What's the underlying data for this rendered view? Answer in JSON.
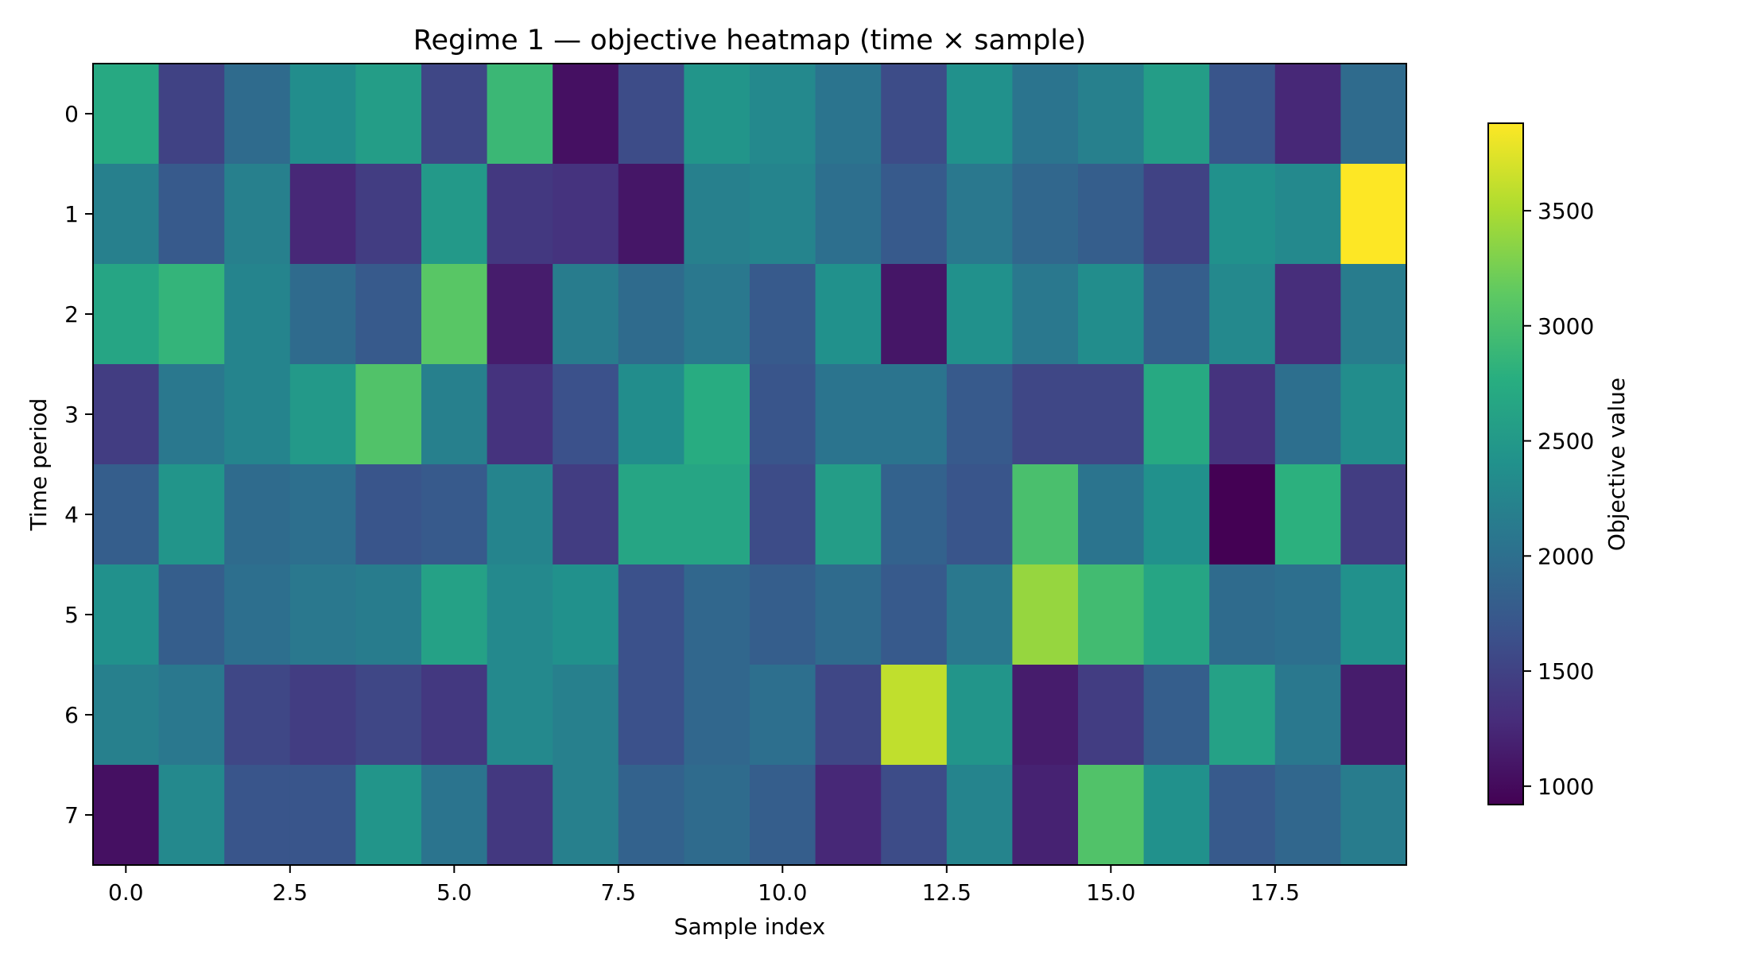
{
  "chart_data": {
    "type": "heatmap",
    "title": "Regime 1 — objective heatmap (time × sample)",
    "xlabel": "Sample index",
    "ylabel": "Time period",
    "colorbar_label": "Objective value",
    "colormap": "viridis",
    "vmin": 920,
    "vmax": 3880,
    "x_tick_values": [
      0,
      2.5,
      5,
      7.5,
      10,
      12.5,
      15,
      17.5
    ],
    "x_tick_labels": [
      "0.0",
      "2.5",
      "5.0",
      "7.5",
      "10.0",
      "12.5",
      "15.0",
      "17.5"
    ],
    "y_tick_labels": [
      "0",
      "1",
      "2",
      "3",
      "4",
      "5",
      "6",
      "7"
    ],
    "colorbar_ticks": [
      1000,
      1500,
      2000,
      2500,
      3000,
      3500
    ],
    "colorbar_tick_labels": [
      "1000",
      "1500",
      "2000",
      "2500",
      "3000",
      "3500"
    ],
    "x": [
      0,
      1,
      2,
      3,
      4,
      5,
      6,
      7,
      8,
      9,
      10,
      11,
      12,
      13,
      14,
      15,
      16,
      17,
      18,
      19
    ],
    "y": [
      0,
      1,
      2,
      3,
      4,
      5,
      6,
      7
    ],
    "values": [
      [
        2700,
        1500,
        1950,
        2350,
        2550,
        1550,
        2900,
        1050,
        1600,
        2450,
        2300,
        2050,
        1600,
        2400,
        2050,
        2200,
        2550,
        1700,
        1250,
        1950
      ],
      [
        2200,
        1750,
        2200,
        1250,
        1450,
        2500,
        1400,
        1350,
        1100,
        2200,
        2250,
        2000,
        1750,
        2100,
        1900,
        1800,
        1500,
        2400,
        2300,
        3880
      ],
      [
        2650,
        2850,
        2250,
        1950,
        1750,
        3100,
        1150,
        2150,
        1950,
        2100,
        1750,
        2400,
        1100,
        2400,
        2100,
        2350,
        1800,
        2300,
        1300,
        2150
      ],
      [
        1450,
        2100,
        2250,
        2500,
        3050,
        2200,
        1350,
        1650,
        2350,
        2750,
        1700,
        2050,
        2050,
        1750,
        1550,
        1550,
        2700,
        1350,
        2000,
        2350
      ],
      [
        1800,
        2450,
        1950,
        2000,
        1700,
        1750,
        2250,
        1450,
        2650,
        2650,
        1600,
        2550,
        1850,
        1700,
        3000,
        2050,
        2400,
        920,
        2800,
        1450
      ],
      [
        2400,
        1800,
        2000,
        2100,
        2150,
        2600,
        2300,
        2400,
        1650,
        1900,
        1800,
        1950,
        1750,
        2100,
        3400,
        2950,
        2650,
        1950,
        2000,
        2400
      ],
      [
        2200,
        2100,
        1550,
        1450,
        1550,
        1400,
        2300,
        2200,
        1650,
        1900,
        2000,
        1550,
        3600,
        2450,
        1150,
        1450,
        1800,
        2600,
        2100,
        1150
      ],
      [
        1050,
        2300,
        1700,
        1700,
        2450,
        2050,
        1400,
        2200,
        1850,
        1950,
        1800,
        1250,
        1600,
        2250,
        1200,
        3050,
        2400,
        1750,
        1900,
        2150
      ]
    ]
  }
}
